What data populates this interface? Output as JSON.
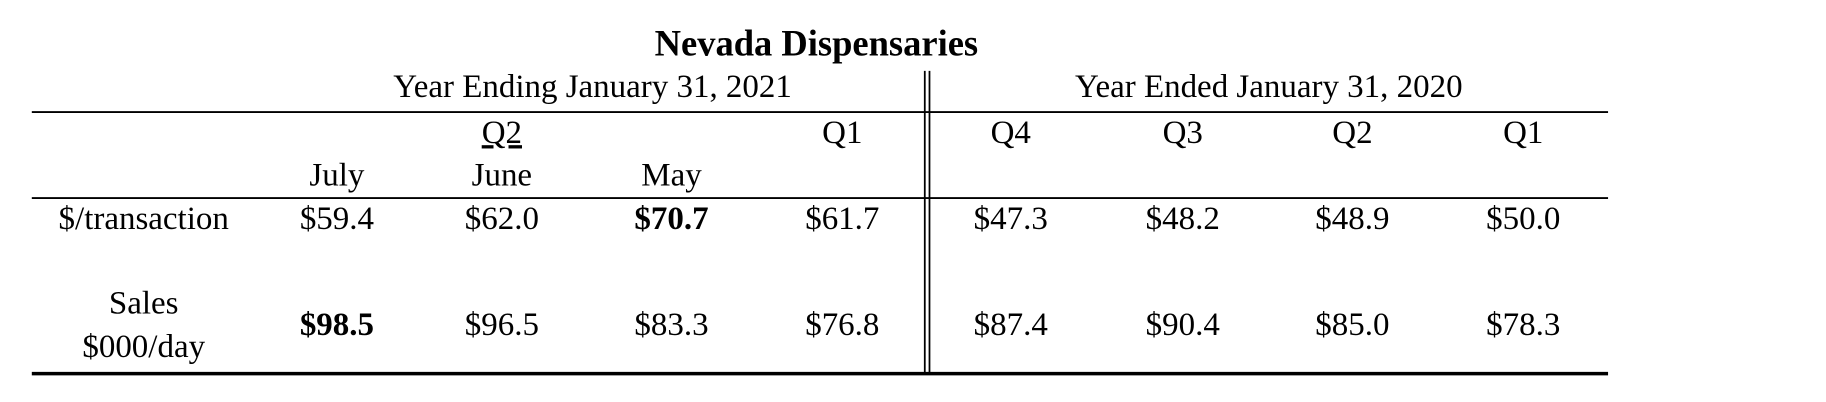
{
  "header": {
    "title": "Nevada Dispensaries",
    "groups": [
      "Year Ending January 31, 2021",
      "Year Ended January 31, 2020"
    ],
    "quarters": [
      "Q2",
      "Q1",
      "Q4",
      "Q3",
      "Q2",
      "Q1"
    ],
    "months": [
      "July",
      "June",
      "May"
    ]
  },
  "table": {
    "rows": [
      {
        "label": [
          "$/transaction"
        ],
        "cells": [
          "$59.4",
          "$62.0",
          "$70.7",
          "$61.7",
          "$47.3",
          "$48.2",
          "$48.9",
          "$50.0"
        ],
        "bold": [
          2
        ]
      },
      {
        "label": [
          "Sales",
          "$000/day"
        ],
        "cells": [
          "$98.5",
          "$96.5",
          "$83.3",
          "$76.8",
          "$87.4",
          "$90.4",
          "$85.0",
          "$78.3"
        ],
        "bold": [
          0
        ]
      }
    ]
  }
}
